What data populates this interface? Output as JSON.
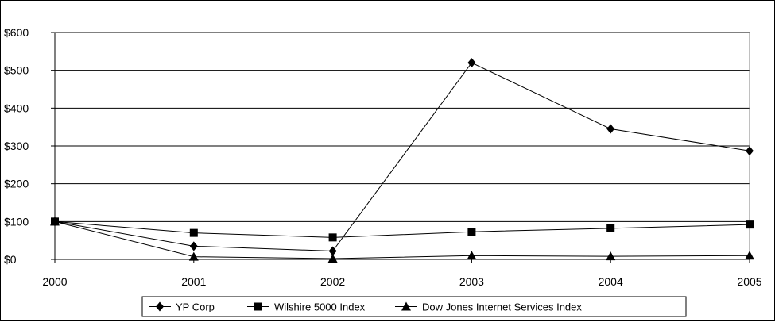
{
  "chart_data": {
    "type": "line",
    "title": "",
    "xlabel": "",
    "ylabel": "",
    "x": [
      "2000",
      "2001",
      "2002",
      "2003",
      "2004",
      "2005"
    ],
    "ylim": [
      0,
      600
    ],
    "y_ticks": [
      "$0",
      "$100",
      "$200",
      "$300",
      "$400",
      "$500",
      "$600"
    ],
    "grid": "horizontal",
    "legend_position": "bottom",
    "series": [
      {
        "name": "YP Corp",
        "marker": "diamond",
        "values": [
          100,
          35,
          22,
          520,
          345,
          287
        ]
      },
      {
        "name": "Wilshire 5000 Index",
        "marker": "square",
        "values": [
          100,
          70,
          58,
          73,
          82,
          92
        ]
      },
      {
        "name": "Dow Jones Internet Services Index",
        "marker": "triangle",
        "values": [
          100,
          7,
          2,
          10,
          8,
          10
        ]
      }
    ],
    "colors": {
      "line": "#000000",
      "grid": "#000000",
      "background": "#ffffff"
    }
  }
}
